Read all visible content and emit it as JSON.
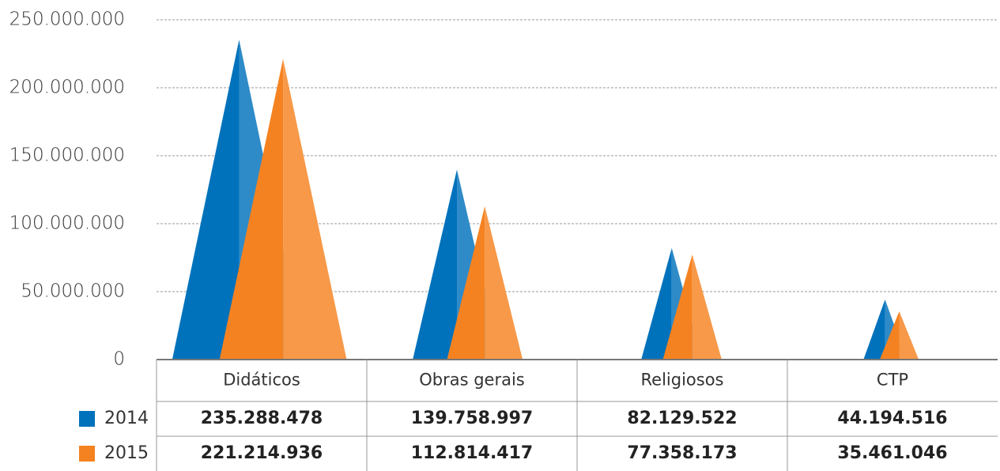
{
  "chart_data": {
    "type": "pyramid",
    "categories": [
      "Didáticos",
      "Obras gerais",
      "Religiosos",
      "CTP"
    ],
    "series": [
      {
        "name": "2014",
        "color": "#0072bc",
        "values": [
          235288478,
          139758997,
          82129522,
          44194516
        ],
        "value_labels": [
          "235.288.478",
          "139.758.997",
          "82.129.522",
          "44.194.516"
        ]
      },
      {
        "name": "2015",
        "color": "#f58220",
        "values": [
          221214936,
          112814417,
          77358173,
          35461046
        ],
        "value_labels": [
          "221.214.936",
          "112.814.417",
          "77.358.173",
          "35.461.046"
        ]
      }
    ],
    "ylim": [
      0,
      250000000
    ],
    "yticks": [
      0,
      {
        "value": 50000000,
        "label": "50.000.000"
      },
      {
        "value": 100000000,
        "label": "100.000.000"
      },
      {
        "value": 150000000,
        "label": "150.000.000"
      },
      {
        "value": 200000000,
        "label": "200.000.000"
      },
      {
        "value": 250000000,
        "label": "250.000.000"
      }
    ],
    "grid": true
  }
}
